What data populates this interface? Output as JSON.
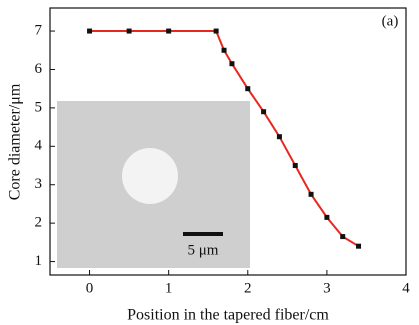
{
  "chart_data": {
    "type": "line",
    "x_label": "Position in the tapered fiber/cm",
    "y_label": "Core diameter/μm",
    "panel_label": "(a)",
    "inset_scale_label": "5 μm",
    "x": [
      0,
      0.5,
      1,
      1.6,
      1.7,
      1.8,
      2.0,
      2.2,
      2.4,
      2.6,
      2.8,
      3.0,
      3.2,
      3.4
    ],
    "series": [
      {
        "color": "#e8281e",
        "marker_color": "#111111",
        "values": [
          7,
          7,
          7,
          7,
          6.5,
          6.15,
          5.5,
          4.9,
          4.25,
          3.5,
          2.75,
          2.15,
          1.65,
          1.4
        ]
      }
    ],
    "xlim": [
      -0.5,
      4
    ],
    "xticks": [
      0,
      1,
      2,
      3,
      4
    ],
    "ylim": [
      0.65,
      7.6
    ],
    "yticks": [
      1,
      2,
      3,
      4,
      5,
      6,
      7
    ]
  }
}
